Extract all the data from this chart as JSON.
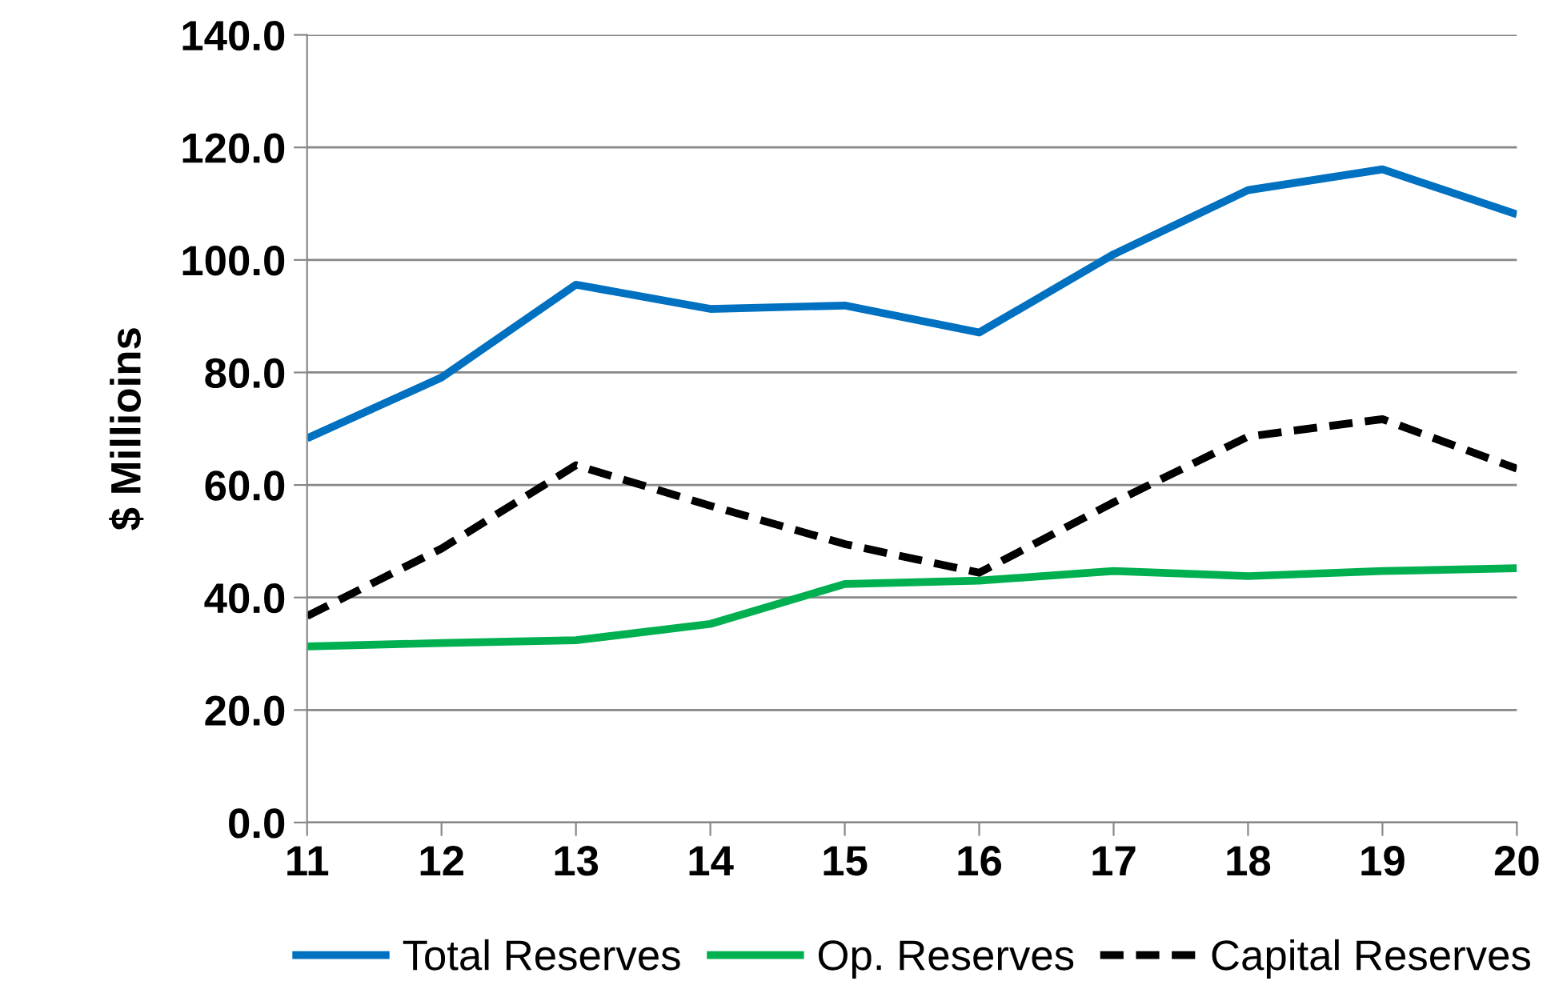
{
  "chart_data": {
    "type": "line",
    "ylabel": "$ Millioins",
    "x": [
      11,
      12,
      13,
      14,
      15,
      16,
      17,
      18,
      19,
      20
    ],
    "xlim": [
      11,
      20
    ],
    "xticks": [
      11,
      12,
      13,
      14,
      15,
      16,
      17,
      18,
      19,
      20
    ],
    "ylim": [
      0,
      140
    ],
    "yticks": [
      {
        "value": 0,
        "label": "0.0"
      },
      {
        "value": 20,
        "label": "20.0"
      },
      {
        "value": 40,
        "label": "40.0"
      },
      {
        "value": 60,
        "label": "60.0"
      },
      {
        "value": 80,
        "label": "80.0"
      },
      {
        "value": 100,
        "label": "100.0"
      },
      {
        "value": 120,
        "label": "120.0"
      },
      {
        "value": 140,
        "label": "140.0"
      }
    ],
    "grid": "y",
    "legend": "bottom",
    "series": [
      {
        "name": "Total Reserves",
        "color": "#0070c0",
        "line_style": "solid",
        "values": [
          68.3,
          79.1,
          95.6,
          91.3,
          91.9,
          87.1,
          101.0,
          112.4,
          116.1,
          108.1
        ]
      },
      {
        "name": "Op. Reserves",
        "color": "#00b050",
        "line_style": "solid",
        "values": [
          31.3,
          31.9,
          32.4,
          35.3,
          42.4,
          43.0,
          44.7,
          43.8,
          44.7,
          45.2
        ]
      },
      {
        "name": "Capital Reserves",
        "color": "#000000",
        "line_style": "dashed",
        "values": [
          36.7,
          48.7,
          63.5,
          56.3,
          49.5,
          44.4,
          56.9,
          68.6,
          71.7,
          62.9
        ]
      }
    ]
  }
}
